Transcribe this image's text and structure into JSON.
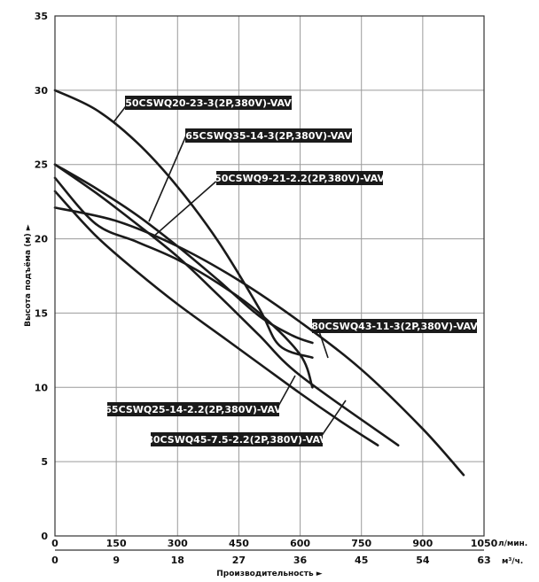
{
  "chart_data": {
    "type": "line",
    "title": "",
    "xlabel": "Производительность ►",
    "ylabel": "Высота подъёма (м) ►",
    "x_unit": "л/мин.",
    "x2_unit": "м³/ч.",
    "xlim": [
      0,
      1050
    ],
    "ylim": [
      0,
      35
    ],
    "x_ticks": [
      0,
      150,
      300,
      450,
      600,
      750,
      900,
      1050
    ],
    "x2_ticks": [
      0,
      9,
      18,
      27,
      36,
      45,
      54,
      63
    ],
    "y_ticks": [
      0,
      5,
      10,
      15,
      20,
      25,
      30,
      35
    ],
    "grid": true,
    "legend": "none",
    "series": [
      {
        "name": "50CSWQ20-23-3(2P,380V)-VAV",
        "x": [
          0,
          100,
          200,
          300,
          400,
          500,
          550,
          630
        ],
        "y": [
          30,
          28.7,
          26.5,
          23.5,
          19.8,
          15.3,
          12.8,
          12
        ]
      },
      {
        "name": "65CSWQ35-14-3(2P,380V)-VAV",
        "x": [
          0,
          100,
          200,
          300,
          400,
          500,
          600,
          840
        ],
        "y": [
          25,
          23.1,
          21.0,
          18.8,
          16.2,
          13.5,
          10.8,
          6.1
        ]
      },
      {
        "name": "50CSWQ9-21-2.2(2P,380V)-VAV",
        "x": [
          0,
          100,
          200,
          300,
          400,
          500,
          600,
          630
        ],
        "y": [
          24.1,
          21.0,
          19.8,
          18.6,
          17.0,
          15.0,
          12.2,
          10.0
        ]
      },
      {
        "name": "80CSWQ43-11-3(2P,380V)-VAV",
        "x": [
          0,
          150,
          300,
          450,
          600,
          750,
          900,
          1000
        ],
        "y": [
          22.1,
          21.2,
          19.5,
          17.2,
          14.4,
          11.2,
          7.2,
          4.1
        ]
      },
      {
        "name": "65CSWQ25-14-2.2(2P,380V)-VAV",
        "x": [
          0,
          100,
          200,
          300,
          400,
          500,
          580,
          630
        ],
        "y": [
          25,
          23.4,
          21.6,
          19.5,
          17.2,
          14.8,
          13.5,
          13.0
        ]
      },
      {
        "name": "80CSWQ45-7.5-2.2(2P,380V)-VAV",
        "x": [
          0,
          100,
          200,
          300,
          400,
          500,
          600,
          700,
          790
        ],
        "y": [
          23.2,
          20.2,
          17.8,
          15.6,
          13.6,
          11.6,
          9.6,
          7.7,
          6.1
        ]
      }
    ]
  }
}
